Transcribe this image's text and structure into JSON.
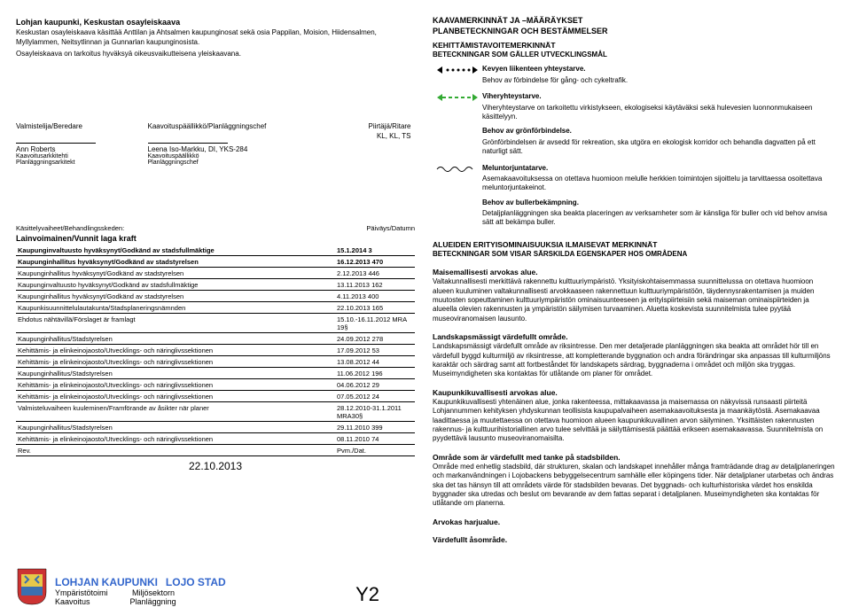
{
  "header": {
    "title": "Lohjan kaupunki, Keskustan osayleiskaava",
    "desc1": "Keskustan osayleiskaava käsittää Anttilan ja Ahtsalmen kaupunginosat sekä osia Pappilan, Moision, Hiidensalmen, Myllylammen, Neitsytlinnan ja Gunnarlan kaupunginosista.",
    "desc2": "Osayleiskaava on tarkoitus hyväksyä oikeusvaikutteisena yleiskaavana."
  },
  "signers": {
    "col1": {
      "role": "Valmistelija/Beredare",
      "name": "Ann Roberts",
      "sub1": "Kaavoitusarkkitehti",
      "sub2": "Planläggningsarkitekt"
    },
    "col2": {
      "role": "Kaavoituspäällikkö/Planläggningschef",
      "name": "Leena Iso-Markku, DI, YKS-284",
      "sub1": "Kaavoituspäällikkö",
      "sub2": "Planläggningschef"
    },
    "col3": {
      "role": "Piirtäjä/Ritare",
      "name": "KL, KL, TS"
    }
  },
  "proc": {
    "hdr_left": "Käsittelyvaiheet/Behandlingsskeden:",
    "hdr_right": "Päiväys/Datumn",
    "kraft": "Lainvoimainen/Vunnit laga kraft",
    "rows": [
      [
        "Kaupunginvaltuusto hyväksynyt/Godkänd av stadsfullmäktige",
        "15.1.2014 3"
      ],
      [
        "Kaupunginhallitus hyväksynyt/Godkänd av stadstyrelsen",
        "16.12.2013 470"
      ],
      [
        "Kaupunginhallitus hyväksynyt/Godkänd av stadstyrelsen",
        "2.12.2013 446"
      ],
      [
        "Kaupunginvaltuusto hyväksynyt/Godkänd av stadsfullmäktige",
        "13.11.2013 162"
      ],
      [
        "Kaupunginhallitus hyväksynyt/Godkänd av stadstyrelsen",
        "4.11.2013 400"
      ],
      [
        "Kaupunkisuunnittelulautakunta/Stadsplaneringsnämnden",
        "22.10.2013 165"
      ],
      [
        "Ehdotus nähtävillä/Förslaget är framlagt",
        "15.10.-16.11.2012 MRA 19§"
      ],
      [
        "Kaupunginhallitus/Stadstyrelsen",
        "24.09.2012 278"
      ],
      [
        "Kehittämis- ja elinkeinojaosto/Utvecklings- och näringlivssektionen",
        "17.09.2012 53"
      ],
      [
        "Kehittämis- ja elinkeinojaosto/Utvecklings- och näringlivssektionen",
        "13.08.2012 44"
      ],
      [
        "Kaupunginhallitus/Stadstyrelsen",
        "11.06.2012 196"
      ],
      [
        "Kehittämis- ja elinkeinojaosto/Utvecklings- och näringlivssektionen",
        "04.06.2012 29"
      ],
      [
        "Kehittämis- ja elinkeinojaosto/Utvecklings- och näringlivssektionen",
        "07.05.2012 24"
      ],
      [
        "Valmisteluvaiheen kuuleminen/Framförande av åsikter när planer",
        "28.12.2010-31.1.2011 MRA30§"
      ],
      [
        "Kaupunginhallitus/Stadstyrelsen",
        "29.11.2010 399"
      ],
      [
        "Kehittämis- ja elinkeinojaosto/Utvecklings- och näringlivssektionen",
        "08.11.2010 74"
      ]
    ],
    "rev": "Rev.",
    "pvm": "Pvm./Dat.",
    "date": "22.10.2013"
  },
  "footer": {
    "muni_fi": "LOHJAN KAUPUNKI",
    "muni_sv": "LOJO STAD",
    "dept_fi1": "Ympäristötoimi",
    "dept_sv1": "Miljösektorn",
    "dept_fi2": "Kaavoitus",
    "dept_sv2": "Planläggning",
    "code": "Y2",
    "crest_colors": {
      "red": "#cc3333",
      "yellow": "#e6c84a",
      "blue": "#3a6fb0"
    }
  },
  "right": {
    "h1a": "KAAVAMERKINNÄT JA –MÄÄRÄYKSET",
    "h1b": "PLANBETECKNINGAR OCH BESTÄMMELSER",
    "h2a": "KEHITTÄMISTAVOITEMERKINNÄT",
    "h2b": "BETECKNINGAR SOM GÄLLER UTVECKLINGSMÅL",
    "items": [
      {
        "sym": "dots",
        "title": "Kevyen liikenteen yhteystarve.",
        "body": "Behov av förbindelse för gång- och cykeltrafik."
      },
      {
        "sym": "green",
        "title": "Viheryhteystarve.",
        "body": "Viheryhteystarve on tarkoitettu virkistykseen, ekologiseksi käytäväksi sekä hulevesien luonnonmukaiseen käsittelyyn.",
        "title2": "Behov av grönförbindelse.",
        "body2": "Grönförbindelsen är avsedd för rekreation, ska utgöra en ekologisk korridor och behandla dagvatten på ett naturligt sätt."
      },
      {
        "sym": "wave",
        "title": "Meluntorjuntatarve.",
        "body": "Asemakaavoituksessa on otettava huomioon melulle herkkien toimintojen sijoittelu ja tarvittaessa osoitettava meluntorjuntakeinot.",
        "title2": "Behov av bullerbekämpning.",
        "body2": "Detaljplanläggningen ska beakta placeringen av verksamheter som är känsliga för buller och vid behov anvisa sätt att bekämpa buller."
      }
    ],
    "h3a": "ALUEIDEN ERITYISOMINAISUUKSIA ILMAISEVAT MERKINNÄT",
    "h3b": "BETECKNINGAR SOM VISAR SÄRSKILDA EGENSKAPER HOS OMRÅDENA",
    "blocks": [
      {
        "t": "Maisemallisesti arvokas alue.",
        "p": "Valtakunnallisesti merkittävä rakennettu kulttuuriympäristö. Yksityiskohtaisemmassa suunnittelussa on otettava huomioon alueen kuuluminen valtakunnallisesti arvokkaaseen rakennettuun kulttuuriympäristöön, täydennysrakentamisen ja muiden muutosten sopeuttaminen kulttuuriympäristön ominaisuunteeseen ja erityispiirteisiin sekä maiseman ominaispiirteiden ja alueella olevien rakennusten ja ympäristön säilymisen turvaaminen. Aluetta koskevista suunnitelmista tulee pyytää museoviranomaisen lausunto."
      },
      {
        "t": "Landskapsmässigt värdefullt område.",
        "p": "Landskapsmässigt värdefullt område av riksintresse. Den mer detaljerade planläggningen ska beakta att området hör till en värdefull byggd kulturmiljö av riksintresse, att kompletterande byggnation och andra förändringar ska anpassas till kulturmiljöns karaktär och särdrag samt att fortbeståndet för landskapets särdrag, byggnaderna i området och miljön ska tryggas. Museimyndigheten ska kontaktas för utlåtande om planer för området."
      },
      {
        "t": "Kaupunkikuvallisesti arvokas alue.",
        "p": "Kaupunkikuvallisesti yhtenäinen alue, jonka rakenteessa, mittakaavassa ja maisemassa on näkyvissä runsaasti piirteitä Lohjannummen kehityksen yhdyskunnan teollisista kaupupalvaiheen asemakaavoituksesta ja maankäytöstä. Asemakaavaa laadittaessa ja muutettaessa on otettava huomioon alueen kaupunkikuvallinen arvon säilyminen. Yksittäisten rakennusten rakennus- ja kulttuurihistoriallinen arvo tulee selvittää ja säilyttämisestä päättää erikseen asemakaavassa. Suunnitelmista on pyydettävä lausunto museoviranomaisilta."
      },
      {
        "t": "Område som är värdefullt med tanke på stadsbilden.",
        "p": "Område med enhetlig stadsbild, där strukturen, skalan och landskapet innehåller många framträdande drag av detaljplaneringen och markanvändningen i Lojobackens bebyggelsecentrum samhälle eller köpingens tider. När detaljplaner utarbetas och ändras ska det tas hänsyn till att områdets värde för stadsbilden bevaras. Det byggnads- och kulturhistoriska värdet hos enskilda byggnader ska utredas och beslut om bevarande av dem fattas separat i detaljplanen. Museimyndigheten ska kontaktas för utlåtande om planerna."
      },
      {
        "t": "Arvokas harjualue.",
        "p": ""
      },
      {
        "t": "Värdefullt åsområde.",
        "p": ""
      }
    ]
  }
}
